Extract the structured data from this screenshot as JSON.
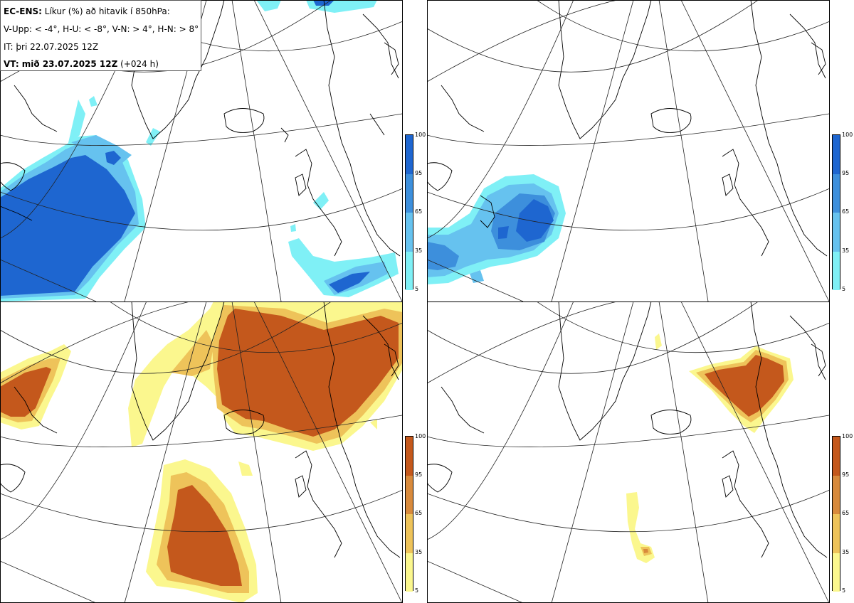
{
  "header": {
    "model": "EC-ENS:",
    "title_rest": "Líkur (%) að hitavik í 850hPa:",
    "thresholds": "V-Upp: < -4°, H-U: < -8°, V-N: > 4°, H-N: > 8°",
    "init_time": "IT: þri 22.07.2025 12Z",
    "valid_label": "VT: mið 23.07.2025 12Z",
    "lead": "(+024 h)"
  },
  "legend_cold": {
    "ticks": [
      "100",
      "95",
      "65",
      "35",
      "5"
    ],
    "colors": [
      "#1e66d0",
      "#3d8fdc",
      "#66c2ef",
      "#7ff0f6"
    ]
  },
  "legend_warm": {
    "ticks": [
      "100",
      "95",
      "65",
      "35",
      "5"
    ],
    "colors": [
      "#c4581c",
      "#d88a3c",
      "#eec35a",
      "#fbf78e"
    ]
  },
  "panels": [
    {
      "id": "top-left",
      "field": "cold",
      "threshold": "< -4°"
    },
    {
      "id": "top-right",
      "field": "cold",
      "threshold": "< -8°"
    },
    {
      "id": "bottom-left",
      "field": "warm",
      "threshold": "> 4°"
    },
    {
      "id": "bottom-right",
      "field": "warm",
      "threshold": "> 8°"
    }
  ]
}
